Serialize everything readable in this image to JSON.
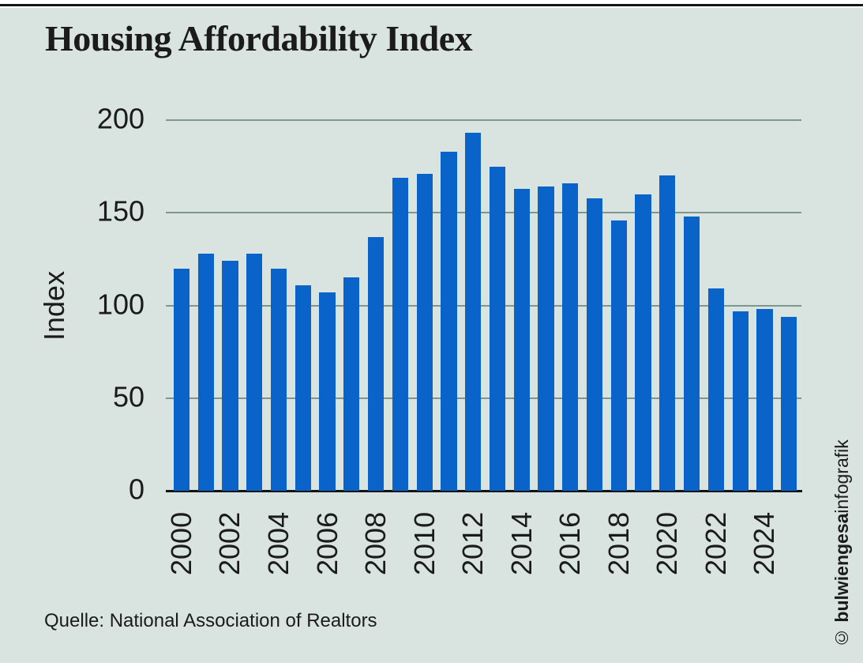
{
  "title": "Housing Affordability Index",
  "source": "Quelle: National Association of Realtors",
  "credit": {
    "copyright": "© ",
    "bold": "bulwiengesa",
    "regular": "infografik"
  },
  "colors": {
    "background": "#D9E4E0",
    "bar": "#0A63C9",
    "gridline": "#7E968E",
    "axis": "#141414",
    "text": "#1B1B1B"
  },
  "chart_data": {
    "type": "bar",
    "title": "Housing Affordability Index",
    "xlabel": "",
    "ylabel": "Index",
    "ylim": [
      0,
      200
    ],
    "yticks": [
      0,
      50,
      100,
      150,
      200
    ],
    "grid": true,
    "legend": false,
    "categories": [
      "2000",
      "2001",
      "2002",
      "2003",
      "2004",
      "2005",
      "2006",
      "2007",
      "2008",
      "2009",
      "2010",
      "2011",
      "2012",
      "2013",
      "2014",
      "2015",
      "2016",
      "2017",
      "2018",
      "2019",
      "2020",
      "2021",
      "2022",
      "2023",
      "2024",
      "2025"
    ],
    "values": [
      120,
      128,
      124,
      128,
      120,
      111,
      107,
      115,
      137,
      169,
      171,
      183,
      193,
      175,
      163,
      164,
      166,
      158,
      146,
      160,
      170,
      148,
      109,
      97,
      98,
      94
    ],
    "xtick_labels": [
      "2000",
      "2002",
      "2004",
      "2006",
      "2008",
      "2010",
      "2012",
      "2014",
      "2016",
      "2018",
      "2020",
      "2022",
      "2024"
    ]
  }
}
